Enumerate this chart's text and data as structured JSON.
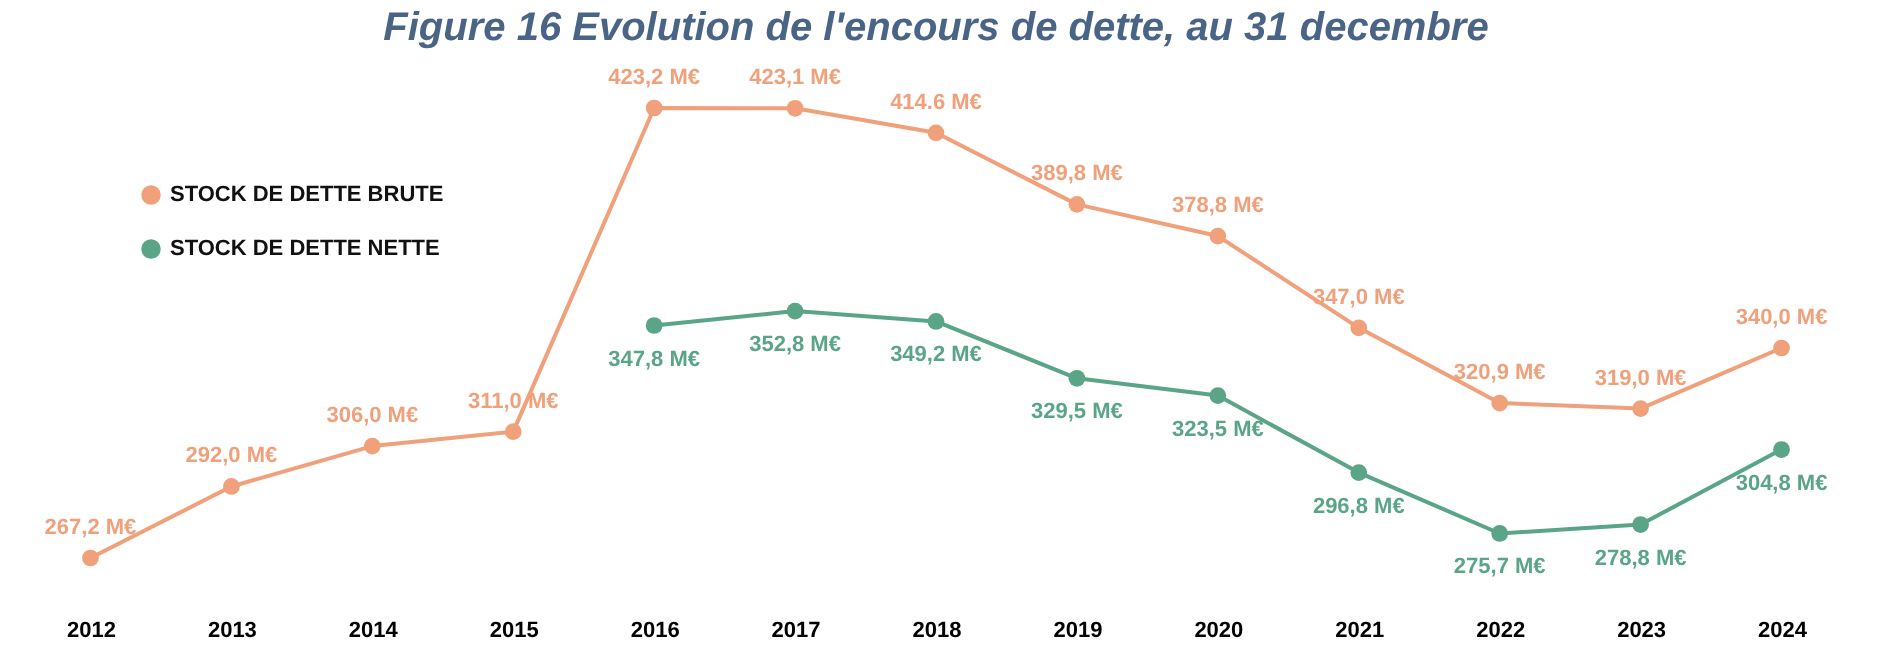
{
  "chart_data": {
    "type": "line",
    "title": "Figure 16 Evolution de l'encours de dette, au 31 decembre",
    "categories": [
      "2012",
      "2013",
      "2014",
      "2015",
      "2016",
      "2017",
      "2018",
      "2019",
      "2020",
      "2021",
      "2022",
      "2023",
      "2024"
    ],
    "series": [
      {
        "name": "STOCK DE DETTE BRUTE",
        "color": "#f0a07a",
        "values": [
          267.2,
          292.0,
          306.0,
          311.0,
          423.2,
          423.1,
          414.6,
          389.8,
          378.8,
          347.0,
          320.9,
          319.0,
          340.0
        ],
        "value_labels": [
          "267,2 M€",
          "292,0 M€",
          "306,0 M€",
          "311,0 M€",
          "423,2 M€",
          "423,1 M€",
          "414.6 M€",
          "389,8 M€",
          "378,8 M€",
          "347,0 M€",
          "320,9 M€",
          "319,0 M€",
          "340,0 M€"
        ]
      },
      {
        "name": "STOCK DE DETTE NETTE",
        "color": "#5aa587",
        "values": [
          null,
          null,
          null,
          null,
          347.8,
          352.8,
          349.2,
          329.5,
          323.5,
          296.8,
          275.7,
          278.8,
          304.8
        ],
        "value_labels": [
          null,
          null,
          null,
          null,
          "347,8 M€",
          "352,8 M€",
          "349,2 M€",
          "329,5 M€",
          "323,5 M€",
          "296,8 M€",
          "275,7 M€",
          "278,8 M€",
          "304,8 M€"
        ]
      }
    ],
    "legend": "top left",
    "grid": false,
    "marker": "circle",
    "line_style": "solid"
  }
}
